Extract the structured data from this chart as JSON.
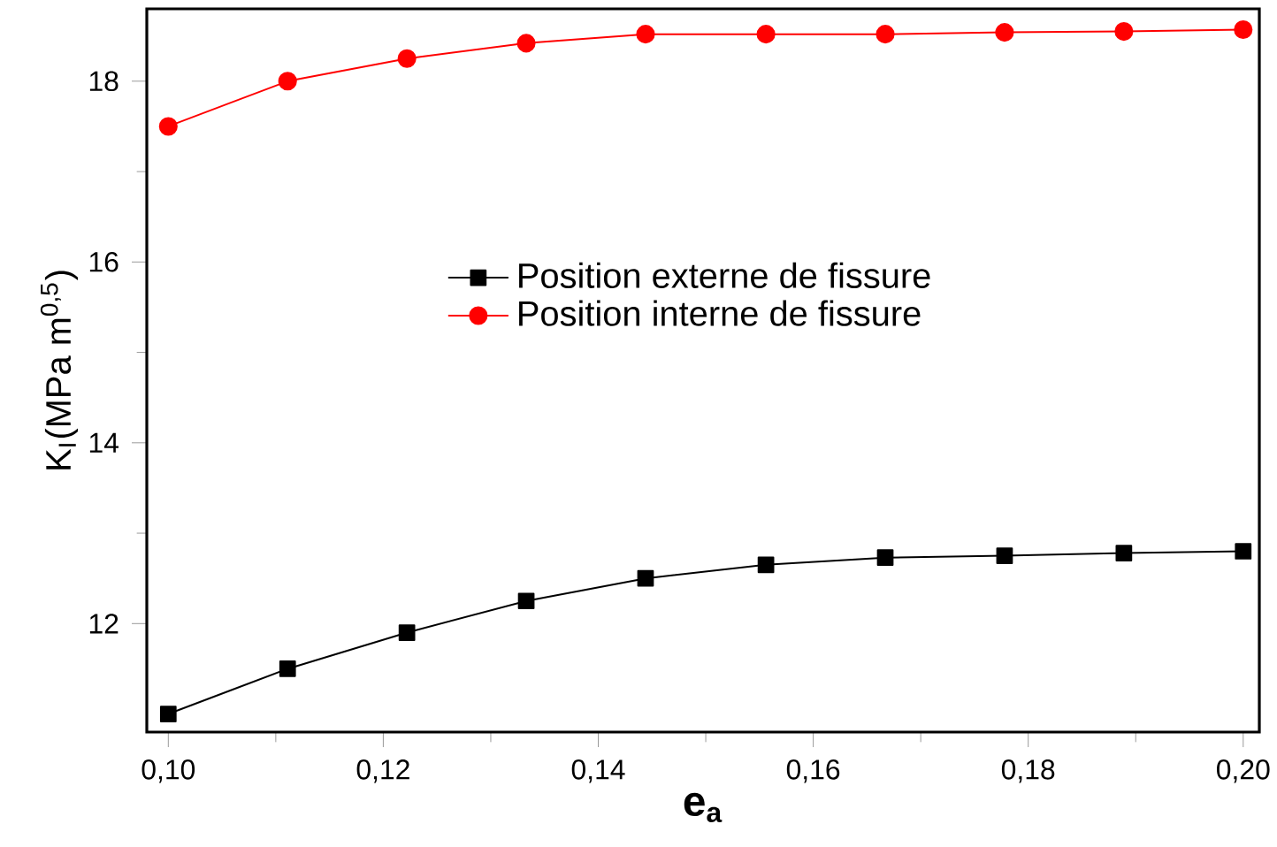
{
  "chart_data": {
    "type": "line",
    "xlabel": "**e$_{a}$**",
    "ylabel": "K$_{I}$(MPa m$^{0,5}$)",
    "x": [
      0.1,
      0.1111,
      0.1222,
      0.1333,
      0.1444,
      0.1556,
      0.1667,
      0.1778,
      0.1889,
      0.2
    ],
    "series": [
      {
        "name": "Position externe de fissure",
        "color": "#000000",
        "marker": "square",
        "values": [
          11.0,
          11.5,
          11.9,
          12.25,
          12.5,
          12.65,
          12.73,
          12.75,
          12.78,
          12.8
        ]
      },
      {
        "name": "Position interne de fissure",
        "color": "#ff0000",
        "marker": "circle",
        "values": [
          17.5,
          18.0,
          18.25,
          18.42,
          18.52,
          18.52,
          18.52,
          18.54,
          18.55,
          18.57
        ]
      }
    ],
    "xlim": [
      0.098,
      0.2015
    ],
    "ylim": [
      10.8,
      18.8
    ],
    "xticks": [
      {
        "value": 0.1,
        "label": "0,10"
      },
      {
        "value": 0.12,
        "label": "0,12"
      },
      {
        "value": 0.14,
        "label": "0,14"
      },
      {
        "value": 0.16,
        "label": "0,16"
      },
      {
        "value": 0.18,
        "label": "0,18"
      },
      {
        "value": 0.2,
        "label": "0,20"
      }
    ],
    "yticks": [
      12,
      14,
      16,
      18
    ],
    "grid": false,
    "legend": "center",
    "line_style": "solid"
  }
}
